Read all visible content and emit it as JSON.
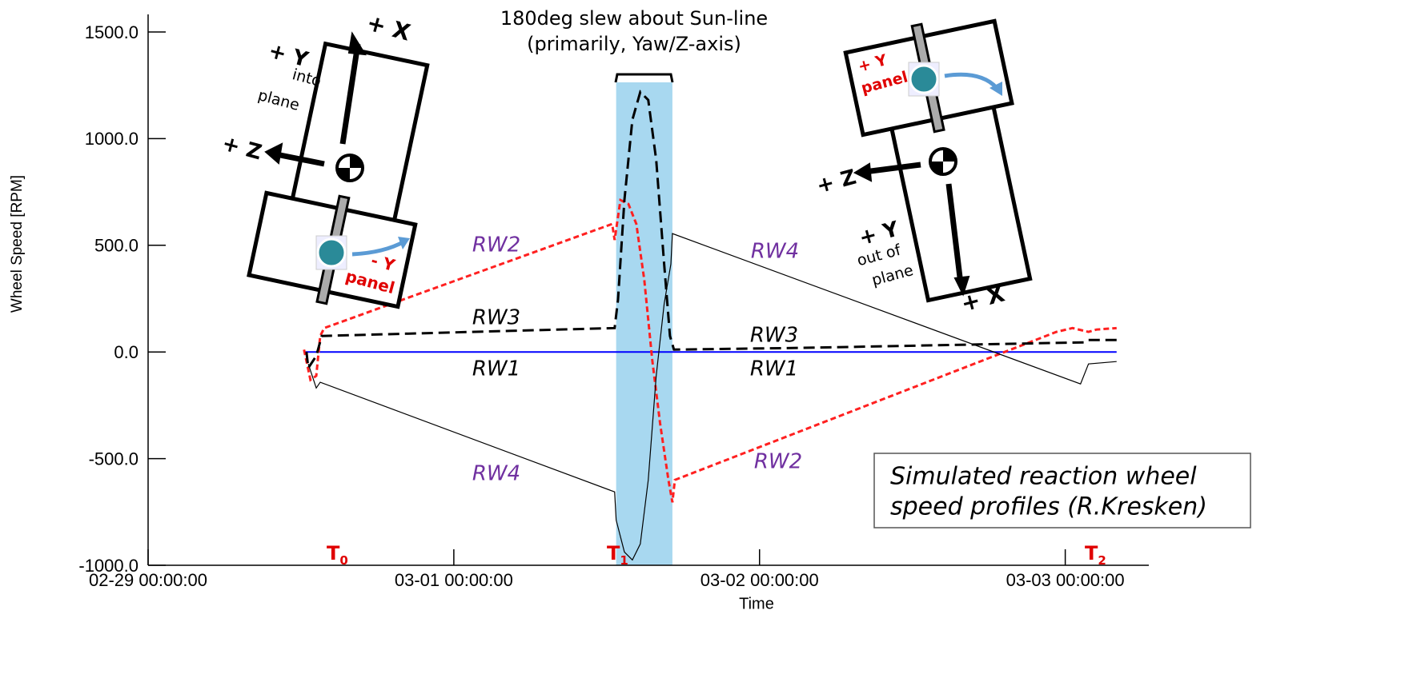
{
  "chart_data": {
    "type": "line",
    "title": "180deg slew about Sun-line",
    "subtitle": "(primarily, Yaw/Z-axis)",
    "x_label": "Time",
    "y_label": "Wheel Speed [RPM]",
    "xlim": [
      0,
      3.2
    ],
    "ylim": [
      -1000,
      1500
    ],
    "xticks": [
      {
        "value": 0,
        "label": "02-29 00:00:00"
      },
      {
        "value": 1,
        "label": "03-01 00:00:00"
      },
      {
        "value": 2,
        "label": "03-02 00:00:00"
      },
      {
        "value": 3,
        "label": "03-03 00:00:00"
      }
    ],
    "yticks": [
      {
        "value": -1000,
        "label": "-1000.0"
      },
      {
        "value": -500,
        "label": "-500.0"
      },
      {
        "value": 0,
        "label": "0.0"
      },
      {
        "value": 500,
        "label": "500.0"
      },
      {
        "value": 1000,
        "label": "1000.0"
      },
      {
        "value": 1500,
        "label": "1500.0"
      }
    ],
    "highlight": {
      "x": [
        1.531,
        1.715
      ],
      "color": "#a8d8f0"
    },
    "series": [
      {
        "name": "RW1",
        "color": "#0000ff",
        "x": [
          0.51,
          3.168
        ],
        "values": [
          0,
          0
        ]
      },
      {
        "name": "RW2",
        "color": "#ff2020",
        "x": [
          0.51,
          0.531,
          0.55,
          0.563,
          0.576,
          1.518,
          1.526,
          1.545,
          1.571,
          1.597,
          1.623,
          1.649,
          1.675,
          1.702,
          1.715,
          1.723,
          2.971,
          3.024,
          3.076,
          3.102,
          3.168
        ],
        "values": [
          11,
          -131,
          -112,
          75,
          112,
          600,
          525,
          712,
          694,
          600,
          338,
          -37,
          -338,
          -600,
          -705,
          -600,
          94,
          112,
          94,
          105,
          112
        ]
      },
      {
        "name": "RW3",
        "color": "#000000",
        "x": [
          0.518,
          0.524,
          0.55,
          0.568,
          1.526,
          1.537,
          1.558,
          1.584,
          1.61,
          1.636,
          1.662,
          1.688,
          1.707,
          1.72,
          2.134,
          3.063,
          3.076,
          3.168
        ],
        "values": [
          0,
          -75,
          -19,
          75,
          112,
          244,
          712,
          1088,
          1219,
          1181,
          900,
          412,
          75,
          11,
          19,
          45,
          56,
          56
        ]
      },
      {
        "name": "RW4",
        "color": "#000000",
        "x": [
          0.524,
          0.55,
          0.563,
          1.526,
          1.531,
          1.558,
          1.584,
          1.61,
          1.636,
          1.662,
          1.688,
          1.71,
          1.715,
          3.05,
          3.076,
          3.168
        ],
        "values": [
          -56,
          -169,
          -142,
          -656,
          -788,
          -938,
          -975,
          -900,
          -600,
          -112,
          225,
          412,
          555,
          -150,
          -56,
          -45
        ]
      }
    ],
    "markers": [
      {
        "text": "T",
        "sub": "0"
      },
      {
        "text": "T",
        "sub": "1"
      },
      {
        "text": "T",
        "sub": "2"
      }
    ],
    "note": [
      "Simulated reaction wheel",
      "speed profiles (R.Kresken)"
    ],
    "diagram_labels": [
      "+ X",
      "+ Y",
      "into",
      "plane",
      "+ Z",
      "- Y",
      "panel",
      "+ Y",
      "panel",
      "+ Z",
      "+ Y",
      "out of",
      "plane",
      "+ X"
    ]
  }
}
